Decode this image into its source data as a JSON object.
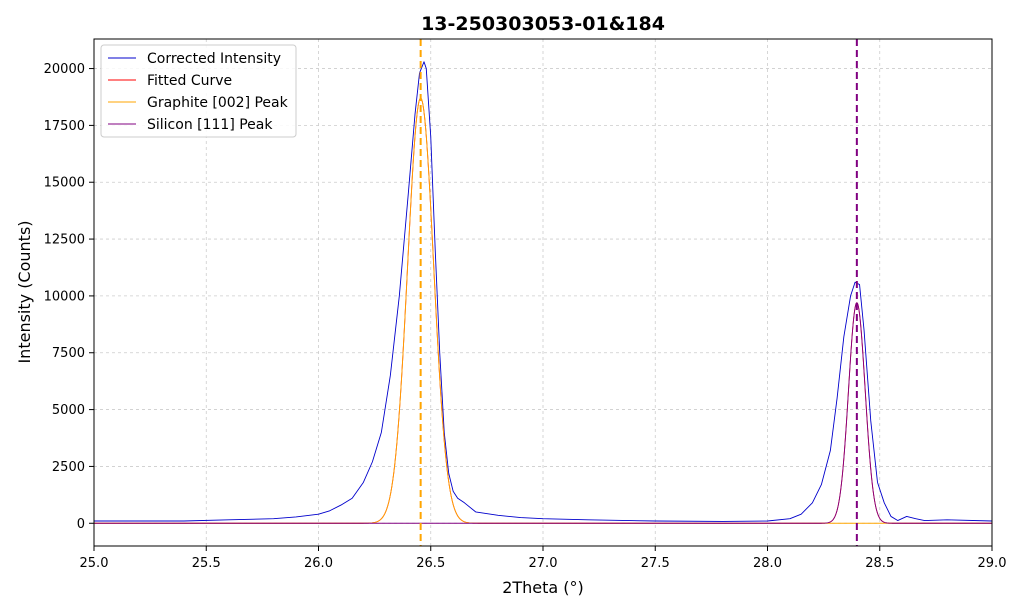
{
  "chart_data": {
    "type": "line",
    "title": "13-250303053-01&184",
    "xlabel": "2Theta (°)",
    "ylabel": "Intensity (Counts)",
    "xlim": [
      25.0,
      29.0
    ],
    "ylim": [
      -1000,
      21300
    ],
    "xticks": [
      25.0,
      25.5,
      26.0,
      26.5,
      27.0,
      27.5,
      28.0,
      28.5,
      29.0
    ],
    "xtick_labels": [
      "25.0",
      "25.5",
      "26.0",
      "26.5",
      "27.0",
      "27.5",
      "28.0",
      "28.5",
      "29.0"
    ],
    "yticks": [
      0,
      2500,
      5000,
      7500,
      10000,
      12500,
      15000,
      17500,
      20000
    ],
    "ytick_labels": [
      "0",
      "2500",
      "5000",
      "7500",
      "10000",
      "12500",
      "15000",
      "17500",
      "20000"
    ],
    "grid": true,
    "legend_position": "upper-left",
    "series": [
      {
        "name": "Corrected Intensity",
        "color": "#0000cc",
        "x": [
          25.0,
          25.2,
          25.4,
          25.6,
          25.8,
          25.9,
          26.0,
          26.05,
          26.1,
          26.15,
          26.2,
          26.24,
          26.28,
          26.32,
          26.36,
          26.4,
          26.43,
          26.45,
          26.47,
          26.48,
          26.5,
          26.52,
          26.54,
          26.56,
          26.58,
          26.6,
          26.62,
          26.65,
          26.7,
          26.8,
          26.9,
          27.0,
          27.2,
          27.5,
          27.8,
          28.0,
          28.1,
          28.15,
          28.2,
          28.24,
          28.28,
          28.31,
          28.34,
          28.37,
          28.39,
          28.41,
          28.43,
          28.46,
          28.49,
          28.52,
          28.55,
          28.58,
          28.62,
          28.66,
          28.7,
          28.8,
          29.0
        ],
        "y": [
          100,
          100,
          100,
          150,
          200,
          280,
          400,
          550,
          800,
          1100,
          1800,
          2700,
          4000,
          6500,
          10000,
          14500,
          18000,
          19800,
          20300,
          20000,
          17000,
          12000,
          7500,
          4000,
          2200,
          1400,
          1100,
          900,
          500,
          350,
          250,
          200,
          150,
          100,
          80,
          100,
          200,
          400,
          900,
          1700,
          3200,
          5500,
          8200,
          10000,
          10600,
          10500,
          8500,
          4500,
          1800,
          900,
          300,
          120,
          300,
          200,
          120,
          150,
          100
        ]
      },
      {
        "name": "Fitted Curve",
        "color": "#ff0000",
        "peaks": [
          {
            "center": 26.455,
            "amplitude": 18700,
            "sigma": 0.058
          },
          {
            "center": 28.398,
            "amplitude": 9700,
            "sigma": 0.037
          }
        ]
      },
      {
        "name": "Graphite [002] Peak",
        "color": "#ffa500",
        "peak": {
          "center": 26.455,
          "amplitude": 18700,
          "sigma": 0.058
        }
      },
      {
        "name": "Silicon [111] Peak",
        "color": "#800080",
        "peak": {
          "center": 28.398,
          "amplitude": 9700,
          "sigma": 0.037
        }
      }
    ],
    "vlines": [
      {
        "x": 26.455,
        "color": "#ffa500",
        "style": "dashed"
      },
      {
        "x": 28.398,
        "color": "#800080",
        "style": "dashed"
      }
    ]
  }
}
